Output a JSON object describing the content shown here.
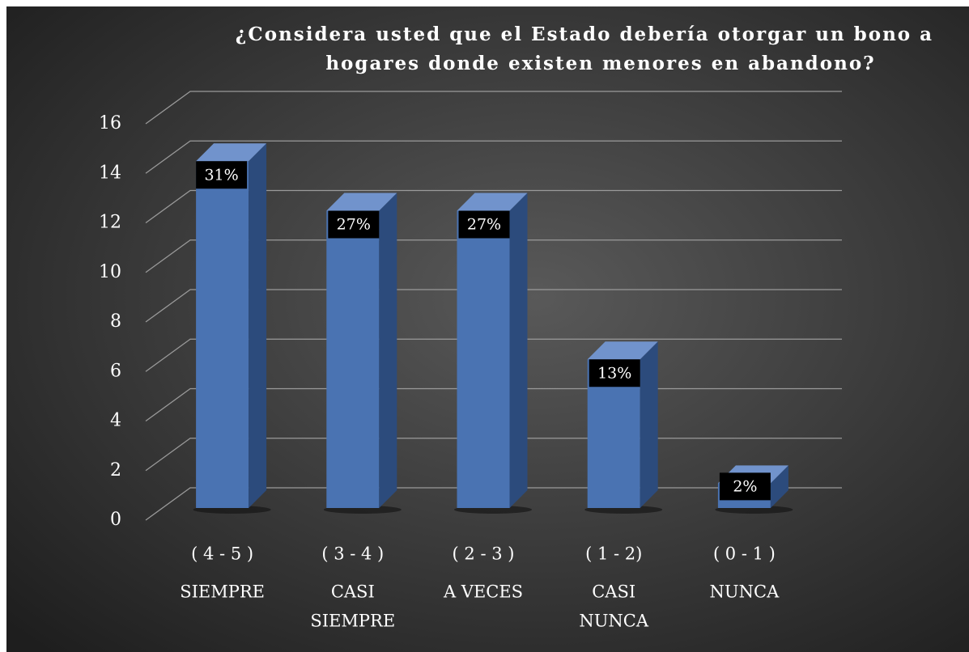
{
  "chart_data": {
    "type": "bar3d",
    "title": [
      "¿Considera usted que el Estado debería otorgar un bono a",
      "hogares donde existen menores en abandono?"
    ],
    "categories": [
      [
        "( 4 - 5 )",
        "SIEMPRE"
      ],
      [
        "( 3 - 4 )",
        "CASI",
        "SIEMPRE"
      ],
      [
        "( 2 - 3 )",
        "A VECES"
      ],
      [
        "( 1 - 2)",
        "CASI",
        "NUNCA"
      ],
      [
        "( 0 - 1 )",
        "NUNCA"
      ]
    ],
    "values": [
      14,
      12,
      12,
      6,
      1
    ],
    "value_labels": [
      "31%",
      "27%",
      "27%",
      "13%",
      "2%"
    ],
    "color": "#4a73b2",
    "ylim": [
      0,
      16
    ],
    "yticks": [
      0,
      2,
      4,
      6,
      8,
      10,
      12,
      14,
      16
    ],
    "grid": true
  }
}
